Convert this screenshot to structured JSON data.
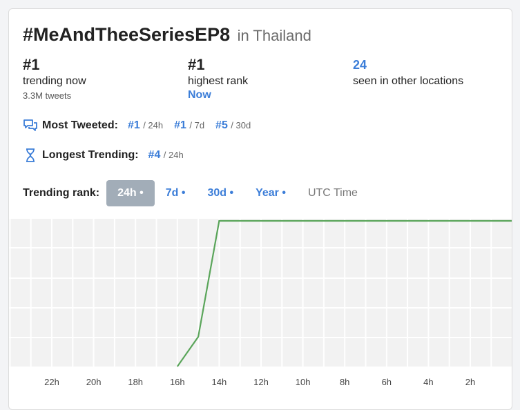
{
  "title": {
    "hashtag": "#MeAndTheeSeriesEP8",
    "location": "in Thailand"
  },
  "stats": {
    "trending_now": {
      "rank": "#1",
      "label": "trending now",
      "tweets": "3.3M tweets"
    },
    "highest_rank": {
      "rank": "#1",
      "label": "highest rank",
      "when": "Now"
    },
    "other_locations": {
      "count": "24",
      "label": "seen in other locations"
    }
  },
  "most_tweeted": {
    "label": "Most Tweeted:",
    "icon": "chat-bubbles-icon",
    "items": [
      {
        "rank": "#1",
        "period": "/ 24h"
      },
      {
        "rank": "#1",
        "period": "/ 7d"
      },
      {
        "rank": "#5",
        "period": "/ 30d"
      }
    ]
  },
  "longest_trending": {
    "label": "Longest Trending:",
    "icon": "hourglass-icon",
    "items": [
      {
        "rank": "#4",
        "period": "/ 24h"
      }
    ]
  },
  "tabs": {
    "label": "Trending rank:",
    "items": [
      "24h •",
      "7d •",
      "30d •",
      "Year •"
    ],
    "active_index": 0,
    "utc": "UTC Time"
  },
  "colors": {
    "accent": "#3b7dd8",
    "line": "#5aa55a",
    "active_tab": "#a2adb8",
    "chart_bg": "#f2f2f2"
  },
  "chart_data": {
    "type": "line",
    "categories": [
      "22h",
      "20h",
      "18h",
      "16h",
      "14h",
      "12h",
      "10h",
      "8h",
      "6h",
      "4h",
      "2h"
    ],
    "x": [
      16,
      15,
      14,
      0
    ],
    "y": [
      50,
      40,
      1,
      1
    ],
    "xlim": [
      24,
      0
    ],
    "ylim": [
      1,
      50
    ],
    "grid": true
  }
}
